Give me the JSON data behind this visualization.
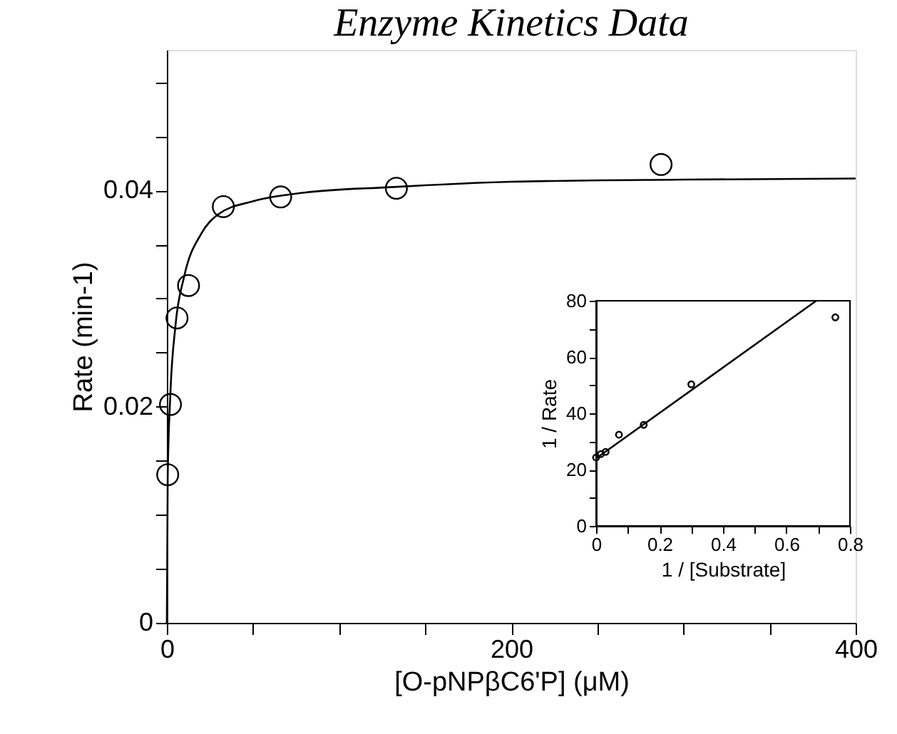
{
  "chart_data": [
    {
      "type": "scatter",
      "title": "Enzyme Kinetics Data",
      "xlabel": "[O-pNPβC6'P] (μM)",
      "ylabel": "Rate (min-1)",
      "xlim": [
        0,
        400
      ],
      "ylim": [
        0,
        0.053
      ],
      "xticks": [
        0,
        {
          "value": 50,
          "label": null
        },
        {
          "value": 100,
          "label": null
        },
        {
          "value": 150,
          "label": null
        },
        200,
        {
          "value": 250,
          "label": null
        },
        {
          "value": 300,
          "label": null
        },
        {
          "value": 350,
          "label": null
        },
        400
      ],
      "yticks": [
        0,
        {
          "value": 0.005,
          "label": null
        },
        {
          "value": 0.01,
          "label": null
        },
        {
          "value": 0.015,
          "label": null
        },
        0.02,
        {
          "value": 0.025,
          "label": null
        },
        {
          "value": 0.03,
          "label": null
        },
        {
          "value": 0.035,
          "label": null
        },
        0.04,
        {
          "value": 0.045,
          "label": null
        },
        {
          "value": 0.05,
          "label": null
        }
      ],
      "grid": false,
      "series": [
        {
          "type": "line",
          "marker": "none",
          "color": "#000000",
          "x": [
            0,
            0.5,
            2,
            5,
            10,
            20,
            30,
            50,
            80,
            130,
            200,
            300,
            400
          ],
          "values": [
            0,
            0.0135,
            0.021,
            0.0275,
            0.032,
            0.036,
            0.0378,
            0.039,
            0.0398,
            0.0403,
            0.0408,
            0.041,
            0.0411
          ]
        },
        {
          "type": "scatter",
          "marker": "circle",
          "color": "#000000",
          "x": [
            0.5,
            2.1,
            5.9,
            12.6,
            32.8,
            66.1,
            133.3,
            287
          ],
          "values": [
            0.0137,
            0.0202,
            0.0282,
            0.0312,
            0.0385,
            0.0394,
            0.0402,
            0.0424
          ]
        }
      ]
    },
    {
      "type": "scatter",
      "xlabel": "1 / [Substrate]",
      "ylabel": "1 / Rate",
      "xlim": [
        0,
        0.8
      ],
      "ylim": [
        0,
        80
      ],
      "xticks": [
        0,
        {
          "value": 0.1,
          "label": null
        },
        0.2,
        {
          "value": 0.3,
          "label": null
        },
        0.4,
        {
          "value": 0.5,
          "label": null
        },
        0.6,
        {
          "value": 0.7,
          "label": null
        },
        0.8
      ],
      "yticks": [
        0,
        {
          "value": 10,
          "label": null
        },
        20,
        {
          "value": 30,
          "label": null
        },
        40,
        {
          "value": 50,
          "label": null
        },
        60,
        {
          "value": 70,
          "label": null
        },
        80
      ],
      "grid": false,
      "series": [
        {
          "type": "line",
          "marker": "none",
          "color": "#000000",
          "x": [
            0,
            0.694
          ],
          "values": [
            24,
            80
          ]
        },
        {
          "type": "scatter",
          "marker": "circle",
          "color": "#000000",
          "x": [
            0,
            0.015,
            0.03,
            0.072,
            0.15,
            0.3,
            0.754
          ],
          "values": [
            24.3,
            25.5,
            26.3,
            32.4,
            35.9,
            50.3,
            74.1
          ]
        }
      ]
    }
  ]
}
